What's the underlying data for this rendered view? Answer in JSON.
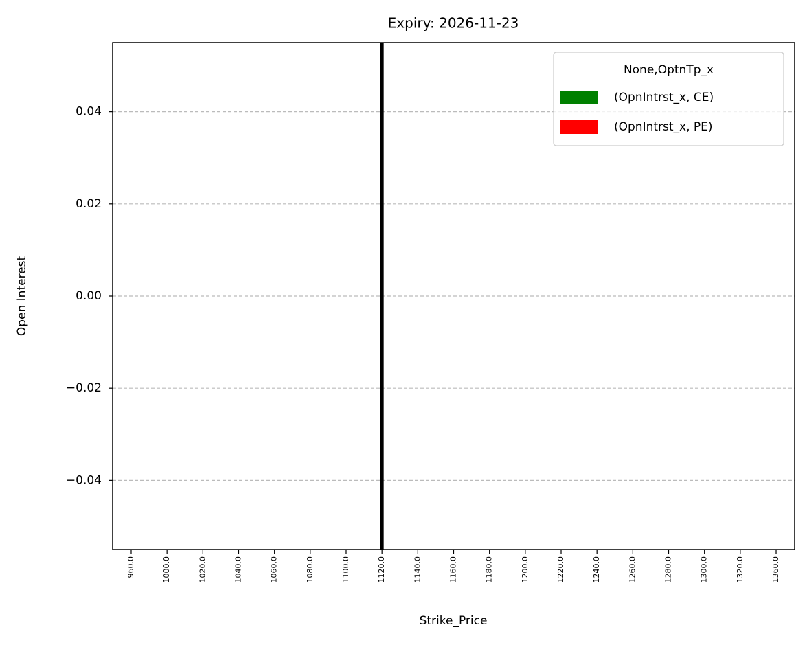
{
  "chart_data": {
    "type": "bar",
    "title": "Expiry: 2026-11-23",
    "x_label": "Strike_Price",
    "y_label": "Open Interest",
    "categories": [
      "960.0",
      "1000.0",
      "1020.0",
      "1040.0",
      "1060.0",
      "1080.0",
      "1100.0",
      "1120.0",
      "1140.0",
      "1160.0",
      "1180.0",
      "1200.0",
      "1220.0",
      "1240.0",
      "1260.0",
      "1280.0",
      "1300.0",
      "1320.0",
      "1360.0"
    ],
    "series": [
      {
        "name": "(OpnIntrst_x, CE)",
        "color": "#008000",
        "values": [
          0,
          0,
          0,
          0,
          0,
          0,
          0,
          0,
          0,
          0,
          0,
          0,
          0,
          0,
          0,
          0,
          0,
          0,
          0
        ]
      },
      {
        "name": "(OpnIntrst_x, PE)",
        "color": "#ff0000",
        "values": [
          0,
          0,
          0,
          0,
          0,
          0,
          0,
          0,
          0,
          0,
          0,
          0,
          0,
          0,
          0,
          0,
          0,
          0,
          0
        ]
      }
    ],
    "legend_title": "None,OptnTp_x",
    "legend": "upper right",
    "vline": {
      "x": "1120.0",
      "color": "#000000"
    },
    "ylim": [
      -0.055,
      0.055
    ],
    "yticks": [
      {
        "value": -0.04,
        "label": "−0.04"
      },
      {
        "value": -0.02,
        "label": "−0.02"
      },
      {
        "value": 0,
        "label": "0.00"
      },
      0.02,
      0.04
    ],
    "grid": true
  }
}
